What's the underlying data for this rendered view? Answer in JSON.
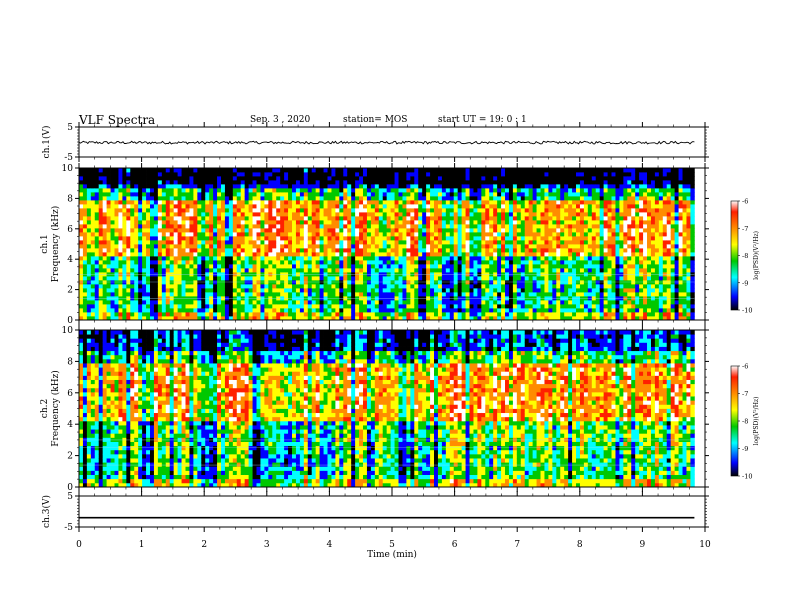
{
  "header": {
    "title": "VLF Spectra",
    "date": "Sep. 3 , 2020",
    "station": "station= MOS",
    "start": "start UT = 19: 0 : 1"
  },
  "colors": {
    "black": "#000000",
    "blue": "#0000ff",
    "cyan": "#00ffff",
    "green": "#00c800",
    "yellow": "#ffff00",
    "orange": "#ff8c00",
    "red": "#ff2000",
    "white": "#ffffff"
  },
  "chart_data": [
    {
      "type": "line",
      "ylabel": "ch.1(V)",
      "ylim": [
        -5,
        5
      ],
      "yticks": [
        "5",
        "-5"
      ],
      "xlim": [
        0,
        10
      ],
      "series": [
        {
          "values_description_constant": -0.2
        }
      ],
      "x": [
        0,
        9.83
      ]
    },
    {
      "type": "heatmap",
      "ylabel": "ch.1",
      "ylabel2": "Frequency (kHz)",
      "ylim": [
        0,
        10
      ],
      "yticks": [
        "0",
        "2",
        "4",
        "6",
        "8",
        "10"
      ],
      "xlim": [
        0,
        10
      ],
      "data_extent_x": [
        0,
        9.83
      ],
      "colorbar": {
        "label": "log(PSD)(V²/Hz)",
        "range": [
          -10,
          -6
        ],
        "ticks": [
          "-6",
          "-7",
          "-8",
          "-9",
          "-10"
        ]
      }
    },
    {
      "type": "heatmap",
      "ylabel": "ch.2",
      "ylabel2": "Frequency (kHz)",
      "ylim": [
        0,
        10
      ],
      "yticks": [
        "0",
        "2",
        "4",
        "6",
        "8",
        "10"
      ],
      "xlim": [
        0,
        10
      ],
      "data_extent_x": [
        0,
        9.83
      ],
      "colorbar": {
        "label": "log(PSD)(V²/Hz)",
        "range": [
          -10,
          -6
        ],
        "ticks": [
          "-6",
          "-7",
          "-8",
          "-9",
          "-10"
        ]
      }
    },
    {
      "type": "line",
      "ylabel": "ch.3(V)",
      "ylim": [
        -5,
        5
      ],
      "yticks": [
        "5",
        "-5"
      ],
      "xlim": [
        0,
        10
      ],
      "series": [
        {
          "values_description_constant": -2.0
        }
      ],
      "x": [
        0,
        9.83
      ],
      "xlabel": "Time (min)",
      "xticks": [
        "0",
        "1",
        "2",
        "3",
        "4",
        "5",
        "6",
        "7",
        "8",
        "9",
        "10"
      ]
    }
  ]
}
